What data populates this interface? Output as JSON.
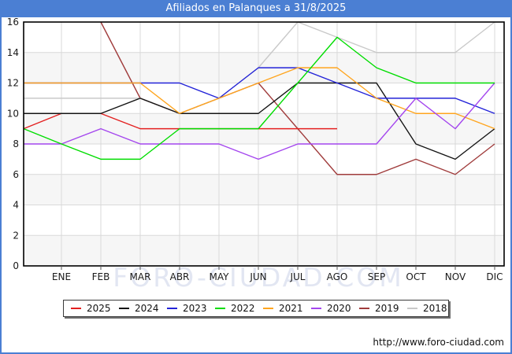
{
  "window": {
    "title": "Afiliados en Palanques a 31/8/2025"
  },
  "chart_data": {
    "type": "line",
    "title": "Afiliados en Palanques a 31/8/2025",
    "months": [
      "ENE",
      "FEB",
      "MAR",
      "ABR",
      "MAY",
      "JUN",
      "JUL",
      "AGO",
      "SEP",
      "OCT",
      "NOV",
      "DIC"
    ],
    "ylim": [
      0,
      16
    ],
    "ytick_step": 2,
    "grid": true,
    "legend_position": "bottom",
    "series": [
      {
        "name": "2025",
        "color": "#e32020",
        "start_value": 9,
        "values": [
          10,
          10,
          9,
          9,
          9,
          9,
          9,
          9,
          null,
          null,
          null,
          null
        ]
      },
      {
        "name": "2024",
        "color": "#141414",
        "start_value": 10,
        "values": [
          10,
          10,
          11,
          10,
          10,
          10,
          12,
          12,
          12,
          8,
          7,
          9
        ]
      },
      {
        "name": "2023",
        "color": "#2323d8",
        "start_value": 12,
        "values": [
          12,
          12,
          12,
          12,
          11,
          13,
          13,
          12,
          11,
          11,
          11,
          10
        ]
      },
      {
        "name": "2022",
        "color": "#00dd00",
        "start_value": 9,
        "values": [
          8,
          7,
          7,
          9,
          9,
          9,
          12,
          15,
          13,
          12,
          12,
          12
        ]
      },
      {
        "name": "2021",
        "color": "#ffa51e",
        "start_value": 12,
        "values": [
          12,
          12,
          12,
          10,
          11,
          12,
          13,
          13,
          11,
          10,
          10,
          9
        ]
      },
      {
        "name": "2020",
        "color": "#a446ee",
        "start_value": 8,
        "values": [
          8,
          9,
          8,
          8,
          8,
          7,
          8,
          8,
          8,
          11,
          9,
          12
        ]
      },
      {
        "name": "2019",
        "color": "#a03c3c",
        "start_value": 16,
        "values": [
          null,
          16,
          11,
          10,
          11,
          12,
          9,
          6,
          6,
          7,
          6,
          8
        ]
      },
      {
        "name": "2018",
        "color": "#c9c9c9",
        "start_value": 11,
        "values": [
          11,
          11,
          11,
          10,
          11,
          13,
          16,
          15,
          14,
          14,
          14,
          16
        ]
      }
    ],
    "watermark": "FORO-CIUDAD.COM",
    "footer_url": "http://www.foro-ciudad.com",
    "colors": {
      "titlebar_bg": "#4b7fd3",
      "titlebar_text": "#ffffff",
      "plot_border": "#000000",
      "gridline": "#d9d9d9",
      "band": "#f6f6f6",
      "axis_label": "#1a1a1a",
      "watermark": "#e2e6f2"
    }
  }
}
